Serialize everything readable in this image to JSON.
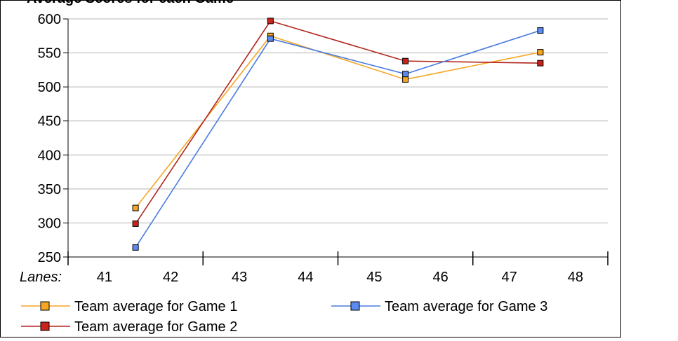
{
  "title_cut": "Average Scores for each Game",
  "chart_data": {
    "type": "line",
    "title": "",
    "x_prefix_label": "Lanes:",
    "lane_labels": [
      "41",
      "42",
      "43",
      "44",
      "45",
      "46",
      "47",
      "48"
    ],
    "lane_pairs": [
      "41-42",
      "43-44",
      "45-46",
      "47-48"
    ],
    "ylim": [
      250,
      600
    ],
    "yticks": [
      250,
      300,
      350,
      400,
      450,
      500,
      550,
      600
    ],
    "grid": true,
    "legend_position": "bottom",
    "series": [
      {
        "name": "Team average for Game 1",
        "color": "#F5A623",
        "marker_fill": "#F5A623",
        "values": [
          322,
          575,
          511,
          551
        ]
      },
      {
        "name": "Team average for Game 2",
        "color": "#B3261E",
        "marker_fill": "#C8241B",
        "values": [
          299,
          597,
          538,
          535
        ]
      },
      {
        "name": "Team average for Game 3",
        "color": "#4A7BE0",
        "marker_fill": "#5B8AF0",
        "values": [
          264,
          571,
          519,
          583
        ]
      }
    ]
  }
}
